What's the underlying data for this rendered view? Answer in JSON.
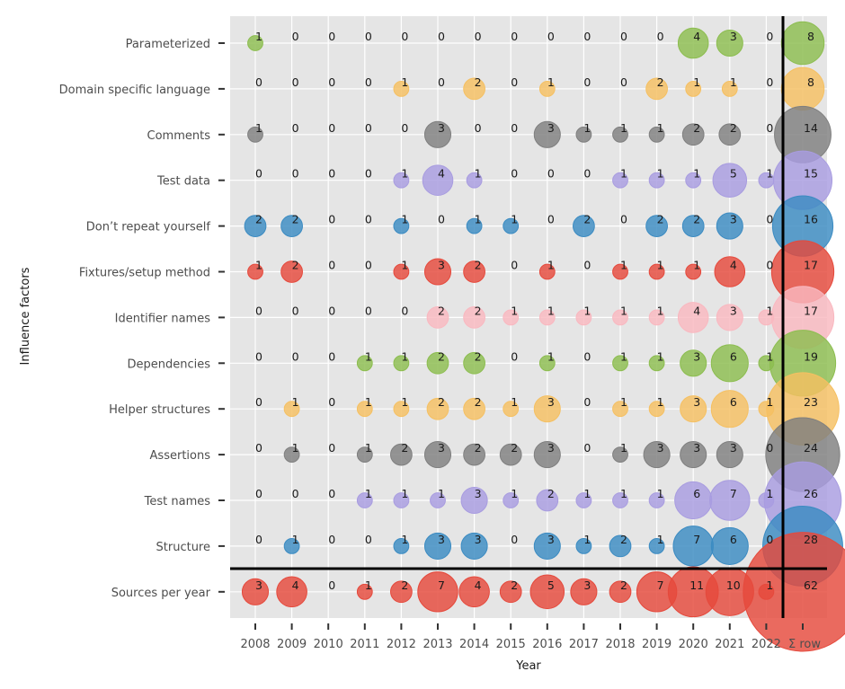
{
  "chart_data": {
    "type": "scatter",
    "subtype": "bubble-matrix",
    "xlabel": "Year",
    "ylabel": "Influence factors",
    "x_categories": [
      "2008",
      "2009",
      "2010",
      "2011",
      "2012",
      "2013",
      "2014",
      "2015",
      "2016",
      "2017",
      "2018",
      "2019",
      "2020",
      "2021",
      "2022",
      "Σ row"
    ],
    "rows": [
      {
        "name": "Parameterized",
        "color": "#8cbd4f",
        "values": [
          1,
          0,
          0,
          0,
          0,
          0,
          0,
          0,
          0,
          0,
          0,
          0,
          4,
          3,
          0
        ],
        "total": 8
      },
      {
        "name": "Domain specific language",
        "color": "#f5c062",
        "values": [
          0,
          0,
          0,
          0,
          1,
          0,
          2,
          0,
          1,
          0,
          0,
          2,
          1,
          1,
          0
        ],
        "total": 8
      },
      {
        "name": "Comments",
        "color": "#7f7f7f",
        "values": [
          1,
          0,
          0,
          0,
          0,
          3,
          0,
          0,
          3,
          1,
          1,
          1,
          2,
          2,
          0
        ],
        "total": 14
      },
      {
        "name": "Test data",
        "color": "#a89ce0",
        "values": [
          0,
          0,
          0,
          0,
          1,
          4,
          1,
          0,
          0,
          0,
          1,
          1,
          1,
          5,
          1
        ],
        "total": 15
      },
      {
        "name": "Don’t repeat yourself",
        "color": "#3b8bc2",
        "values": [
          2,
          2,
          0,
          0,
          1,
          0,
          1,
          1,
          0,
          2,
          0,
          2,
          2,
          3,
          0
        ],
        "total": 16
      },
      {
        "name": "Fixtures/setup method",
        "color": "#e5493c",
        "values": [
          1,
          2,
          0,
          0,
          1,
          3,
          2,
          0,
          1,
          0,
          1,
          1,
          1,
          4,
          0
        ],
        "total": 17
      },
      {
        "name": "Identifier names",
        "color": "#f9b8c0",
        "values": [
          0,
          0,
          0,
          0,
          0,
          2,
          2,
          1,
          1,
          1,
          1,
          1,
          4,
          3,
          1
        ],
        "total": 17
      },
      {
        "name": "Dependencies",
        "color": "#8cbd4f",
        "values": [
          0,
          0,
          0,
          1,
          1,
          2,
          2,
          0,
          1,
          0,
          1,
          1,
          3,
          6,
          1
        ],
        "total": 19
      },
      {
        "name": "Helper structures",
        "color": "#f5c062",
        "values": [
          0,
          1,
          0,
          1,
          1,
          2,
          2,
          1,
          3,
          0,
          1,
          1,
          3,
          6,
          1
        ],
        "total": 23
      },
      {
        "name": "Assertions",
        "color": "#7f7f7f",
        "values": [
          0,
          1,
          0,
          1,
          2,
          3,
          2,
          2,
          3,
          0,
          1,
          3,
          3,
          3,
          0
        ],
        "total": 24
      },
      {
        "name": "Test names",
        "color": "#a89ce0",
        "values": [
          0,
          0,
          0,
          1,
          1,
          1,
          3,
          1,
          2,
          1,
          1,
          1,
          6,
          7,
          1
        ],
        "total": 26
      },
      {
        "name": "Structure",
        "color": "#3b8bc2",
        "values": [
          0,
          1,
          0,
          0,
          1,
          3,
          3,
          0,
          3,
          1,
          2,
          1,
          7,
          6,
          0
        ],
        "total": 28
      },
      {
        "name": "Sources per year",
        "color": "#e5493c",
        "values": [
          3,
          4,
          0,
          1,
          2,
          7,
          4,
          2,
          5,
          3,
          2,
          7,
          11,
          10,
          1
        ],
        "total": 62
      }
    ],
    "legend": "none",
    "grid": true,
    "separators": [
      "vertical before Σ row column",
      "horizontal above Sources per year row"
    ]
  }
}
